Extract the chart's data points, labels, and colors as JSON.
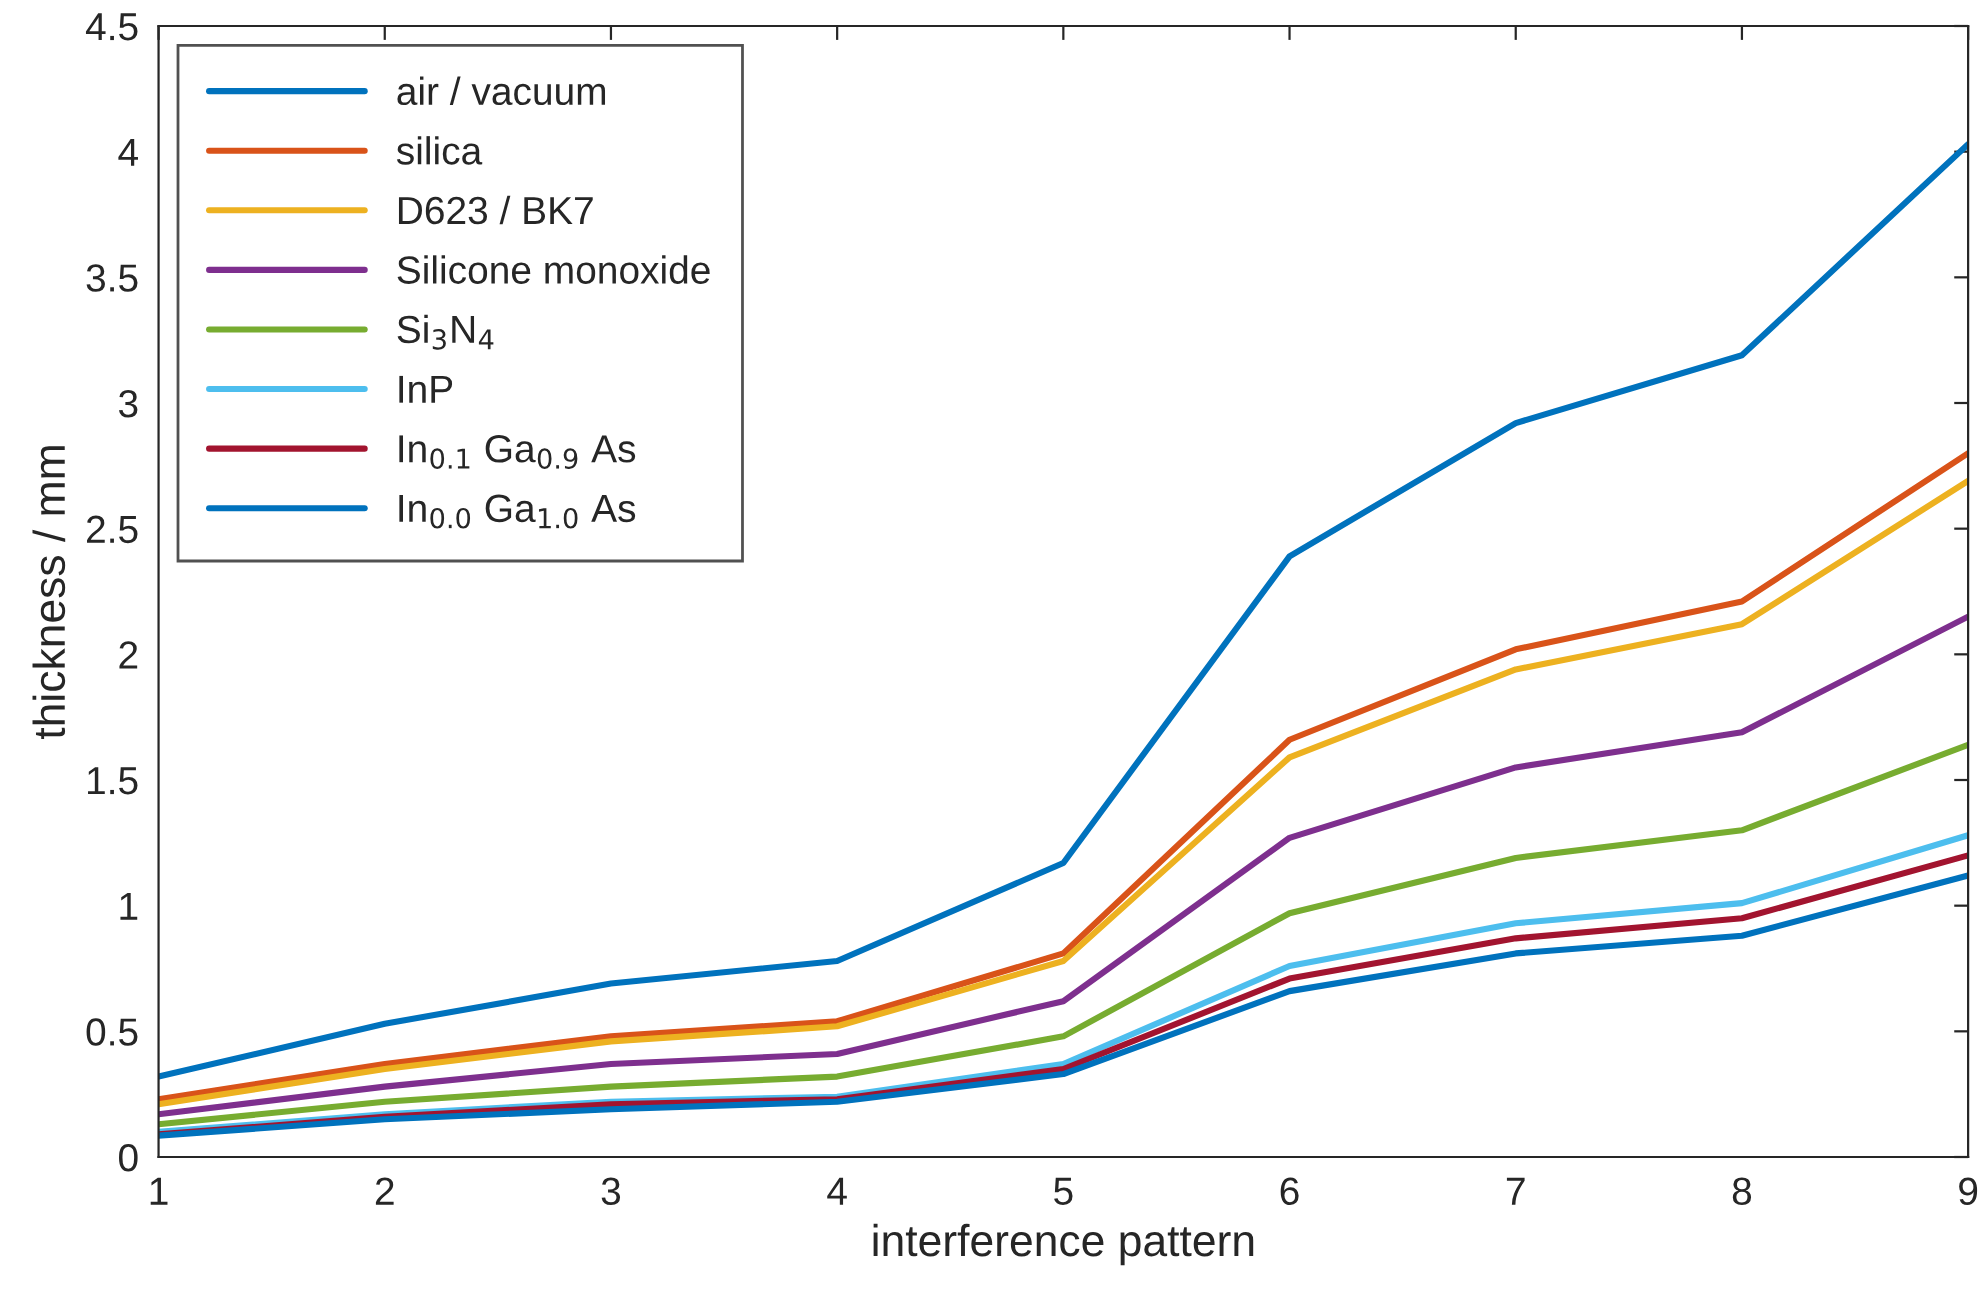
{
  "chart_data": {
    "type": "line",
    "xlabel": "interference pattern",
    "ylabel": "thickness / mm",
    "x": [
      1,
      2,
      3,
      4,
      5,
      6,
      7,
      8,
      9
    ],
    "series": [
      {
        "name": "air / vacuum",
        "color": "#0072bd",
        "values": [
          0.32,
          0.53,
          0.69,
          0.78,
          1.17,
          2.39,
          2.92,
          3.19,
          4.03
        ]
      },
      {
        "name": "silica",
        "color": "#d95319",
        "values": [
          0.23,
          0.37,
          0.48,
          0.54,
          0.81,
          1.66,
          2.02,
          2.21,
          2.8
        ]
      },
      {
        "name": "D623 / BK7",
        "color": "#edb120",
        "values": [
          0.21,
          0.35,
          0.46,
          0.52,
          0.78,
          1.59,
          1.94,
          2.12,
          2.69
        ]
      },
      {
        "name": "Silicone monoxide",
        "color": "#7e2f8e",
        "values": [
          0.17,
          0.28,
          0.37,
          0.41,
          0.62,
          1.27,
          1.55,
          1.69,
          2.15
        ]
      },
      {
        "name": "Si$_{3}$N$_{4}$",
        "color": "#77ac30",
        "values": [
          0.13,
          0.22,
          0.28,
          0.32,
          0.48,
          0.97,
          1.19,
          1.3,
          1.64
        ]
      },
      {
        "name": "InP",
        "color": "#4dbeee",
        "values": [
          0.1,
          0.17,
          0.22,
          0.24,
          0.37,
          0.76,
          0.93,
          1.01,
          1.28
        ]
      },
      {
        "name": "In$_{0.1}$ Ga$_{0.9}$ As",
        "color": "#a2142f",
        "values": [
          0.09,
          0.16,
          0.21,
          0.23,
          0.35,
          0.71,
          0.87,
          0.95,
          1.2
        ]
      },
      {
        "name": "In$_{0.0}$ Ga$_{1.0}$ As",
        "color": "#0072bd",
        "values": [
          0.085,
          0.15,
          0.19,
          0.22,
          0.33,
          0.66,
          0.81,
          0.88,
          1.12
        ]
      }
    ],
    "xlim": [
      1,
      9
    ],
    "xticks": [
      1,
      2,
      3,
      4,
      5,
      6,
      7,
      8,
      9
    ],
    "ylim": [
      0,
      4.5
    ],
    "yticks": [
      0,
      0.5,
      1,
      1.5,
      2,
      2.5,
      3,
      3.5,
      4,
      4.5
    ],
    "legend": "top left",
    "grid": false,
    "marker": "none",
    "line_style": "solid"
  }
}
